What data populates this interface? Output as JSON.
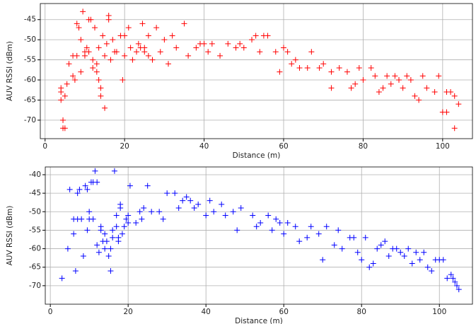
{
  "chart_data": [
    {
      "type": "scatter",
      "xlabel": "Distance (m)",
      "ylabel": "AUV RSSI (dBm)",
      "color": "#ff0000",
      "marker": "+",
      "grid": true,
      "xlim": [
        -1.2,
        107.5
      ],
      "ylim": [
        -74.6,
        -41
      ],
      "xticks": [
        0,
        20,
        40,
        60,
        80,
        100
      ],
      "yticks": [
        -70,
        -65,
        -60,
        -55,
        -50,
        -45
      ],
      "x": [
        4,
        4,
        4,
        4.5,
        4.5,
        5,
        5,
        5.5,
        6,
        7,
        7,
        7.5,
        8,
        8,
        8.5,
        9,
        9,
        9.5,
        10,
        10,
        10.5,
        11,
        11,
        11.5,
        12,
        12,
        12.5,
        13,
        13,
        13.5,
        13.5,
        14,
        14,
        14.5,
        15,
        15,
        15.5,
        16,
        16,
        16.5,
        17,
        17.5,
        18,
        19,
        19.5,
        20,
        20,
        21,
        21.5,
        22,
        23,
        23.5,
        24,
        24.5,
        25,
        25,
        26,
        26,
        27,
        28,
        29,
        30,
        31,
        32,
        33,
        35,
        36,
        38,
        39,
        40,
        41,
        42,
        44,
        46,
        48,
        49,
        50,
        52,
        53,
        54,
        55,
        56,
        58,
        59,
        60,
        61,
        62,
        63,
        64,
        66,
        67,
        69,
        70,
        72,
        72,
        74,
        76,
        77,
        78,
        79,
        80,
        82,
        83,
        84,
        85,
        86,
        87,
        88,
        89,
        90,
        91,
        92,
        93,
        94,
        95,
        96,
        98,
        99,
        100,
        101,
        102,
        103,
        103,
        104,
        101
      ],
      "values": [
        -62,
        -63,
        -65,
        -70,
        -72,
        -72,
        -64,
        -61,
        -56,
        -54,
        -59,
        -60,
        -54,
        -46,
        -47,
        -58,
        -50,
        -43,
        -53,
        -54,
        -52,
        -45,
        -53,
        -45,
        -55,
        -57,
        -47,
        -56,
        -58,
        -52,
        -60,
        -64,
        -62,
        -49,
        -54,
        -67,
        -51,
        -44,
        -45,
        -55,
        -50,
        -53,
        -53,
        -49,
        -60,
        -54,
        -49,
        -47,
        -52,
        -55,
        -53,
        -51,
        -52,
        -46,
        -52,
        -53,
        -49,
        -54,
        -55,
        -47,
        -53,
        -50,
        -56,
        -49,
        -52,
        -46,
        -54,
        -52,
        -51,
        -51,
        -53,
        -51,
        -54,
        -51,
        -52,
        -51,
        -52,
        -50,
        -49,
        -53,
        -49,
        -49,
        -53,
        -58,
        -52,
        -53,
        -56,
        -55,
        -57,
        -57,
        -53,
        -57,
        -56,
        -62,
        -58,
        -57,
        -58,
        -62,
        -61,
        -57,
        -60,
        -57,
        -59,
        -63,
        -62,
        -59,
        -61,
        -59,
        -60,
        -62,
        -59,
        -60,
        -64,
        -65,
        -59,
        -62,
        -63,
        -59,
        -68,
        -63,
        -63,
        -72,
        -64,
        -66,
        -68
      ]
    },
    {
      "type": "scatter",
      "xlabel": "Distance (m)",
      "ylabel": "AUV RSSI (dBm)",
      "color": "#0000ff",
      "marker": "+",
      "grid": true,
      "xlim": [
        -1.3,
        108.5
      ],
      "ylim": [
        -75,
        -37.9
      ],
      "xticks": [
        0,
        20,
        40,
        60,
        80,
        100
      ],
      "yticks": [
        -70,
        -65,
        -60,
        -55,
        -50,
        -45,
        -40
      ],
      "x": [
        3,
        4.5,
        5,
        6,
        6,
        6.5,
        7,
        7,
        7.5,
        8,
        8.5,
        9,
        9.5,
        9.5,
        10,
        10,
        10.5,
        11,
        11,
        11.5,
        12,
        12,
        12.5,
        13,
        13,
        13.5,
        14,
        14,
        14.5,
        15,
        15.5,
        15.5,
        16,
        16,
        16.5,
        17,
        17,
        17.5,
        17.5,
        18,
        18,
        18.5,
        19,
        19.5,
        20,
        20,
        20.5,
        22,
        23,
        23.5,
        24,
        25,
        26,
        28,
        29,
        30,
        32,
        33,
        34,
        35,
        36,
        37,
        38,
        40,
        41,
        42,
        44,
        45,
        47,
        48,
        49,
        52,
        53,
        54,
        56,
        57,
        58,
        59,
        60,
        61,
        63,
        64,
        66,
        67,
        69,
        70,
        71,
        73,
        74,
        75,
        77,
        78,
        79,
        80,
        81,
        82,
        83,
        84,
        85,
        86,
        87,
        88,
        89,
        90,
        91,
        92,
        93,
        94,
        95,
        96,
        97,
        98,
        99,
        100,
        101,
        102,
        103,
        103.5,
        104,
        104.5,
        105
      ],
      "values": [
        -68,
        -60,
        -44,
        -52,
        -56,
        -66,
        -52,
        -45,
        -44,
        -52,
        -62,
        -43,
        -44,
        -55,
        -50,
        -52,
        -42,
        -42,
        -52,
        -39,
        -42,
        -59,
        -61,
        -54,
        -55,
        -58,
        -56,
        -60,
        -58,
        -62,
        -60,
        -66,
        -55,
        -57,
        -39,
        -51,
        -54,
        -58,
        -57,
        -48,
        -49,
        -56,
        -54,
        -52,
        -53,
        -51,
        -43,
        -53,
        -50,
        -52,
        -49,
        -43,
        -50,
        -50,
        -52,
        -45,
        -45,
        -49,
        -47,
        -46,
        -47,
        -49,
        -48,
        -51,
        -47,
        -50,
        -48,
        -51,
        -50,
        -55,
        -49,
        -51,
        -54,
        -53,
        -51,
        -55,
        -52,
        -53,
        -56,
        -53,
        -54,
        -58,
        -57,
        -54,
        -56,
        -63,
        -54,
        -59,
        -55,
        -60,
        -57,
        -57,
        -61,
        -63,
        -57,
        -65,
        -64,
        -60,
        -59,
        -58,
        -62,
        -60,
        -60,
        -61,
        -62,
        -60,
        -64,
        -61,
        -63,
        -61,
        -65,
        -66,
        -63,
        -63,
        -63,
        -68,
        -67,
        -68,
        -69,
        -70,
        -71
      ]
    }
  ]
}
